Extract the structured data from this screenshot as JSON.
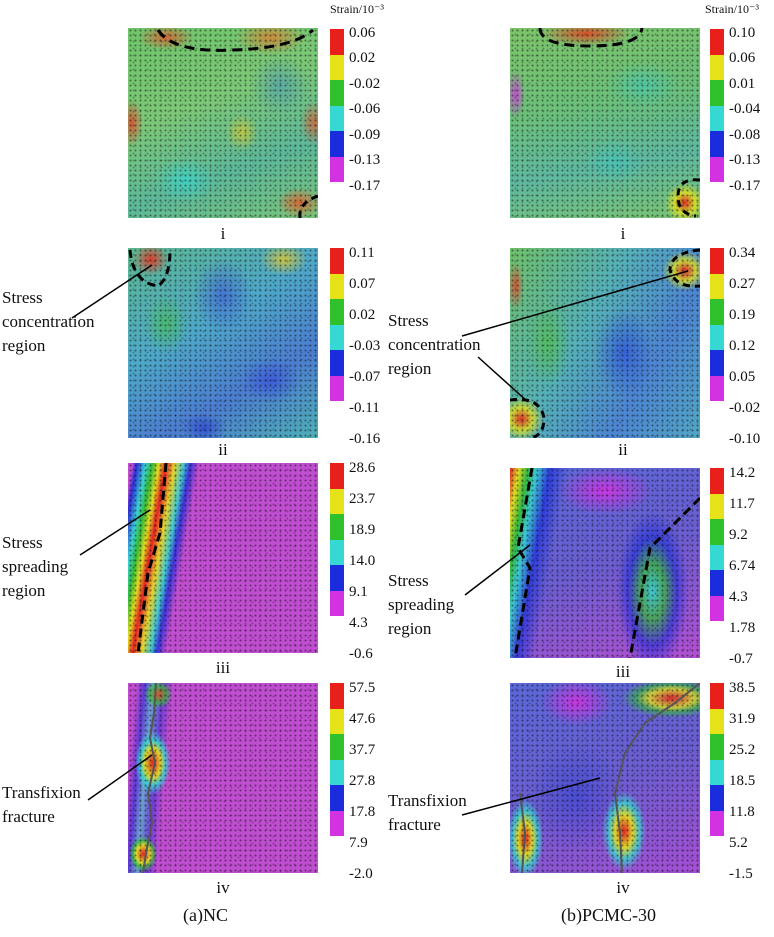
{
  "strain_unit": "Strain/10⁻³",
  "colorbar_colors": [
    "#e8201c",
    "#e6e21a",
    "#2fc12c",
    "#35d8d2",
    "#1a2cdb",
    "#d332e2"
  ],
  "captions": {
    "left": "(a)NC",
    "right": "(b)PCMC-30"
  },
  "stages": [
    "i",
    "ii",
    "iii",
    "iv"
  ],
  "left_scales": [
    [
      "0.06",
      "0.02",
      "-0.02",
      "-0.06",
      "-0.09",
      "-0.13",
      "-0.17"
    ],
    [
      "0.11",
      "0.07",
      "0.02",
      "-0.03",
      "-0.07",
      "-0.11",
      "-0.16"
    ],
    [
      "28.6",
      "23.7",
      "18.9",
      "14.0",
      "9.1",
      "4.3",
      "-0.6"
    ],
    [
      "57.5",
      "47.6",
      "37.7",
      "27.8",
      "17.8",
      "7.9",
      "-2.0"
    ]
  ],
  "right_scales": [
    [
      "0.10",
      "0.06",
      "0.01",
      "-0.04",
      "-0.08",
      "-0.13",
      "-0.17"
    ],
    [
      "0.34",
      "0.27",
      "0.19",
      "0.12",
      "0.05",
      "-0.02",
      "-0.10"
    ],
    [
      "14.2",
      "11.7",
      "9.2",
      "6.74",
      "4.3",
      "1.78",
      "-0.7"
    ],
    [
      "38.5",
      "31.9",
      "25.2",
      "18.5",
      "11.8",
      "5.2",
      "-1.5"
    ]
  ],
  "annotations": {
    "left_concentration": [
      "Stress",
      "concentration",
      "region"
    ],
    "right_concentration": [
      "Stress",
      "concentration",
      "region"
    ],
    "left_spreading": [
      "Stress",
      "spreading",
      "region"
    ],
    "right_spreading": [
      "Stress",
      "spreading",
      "region"
    ],
    "left_fracture": [
      "Transfixion",
      "fracture"
    ],
    "right_fracture": [
      "Transfixion",
      "fracture"
    ]
  }
}
